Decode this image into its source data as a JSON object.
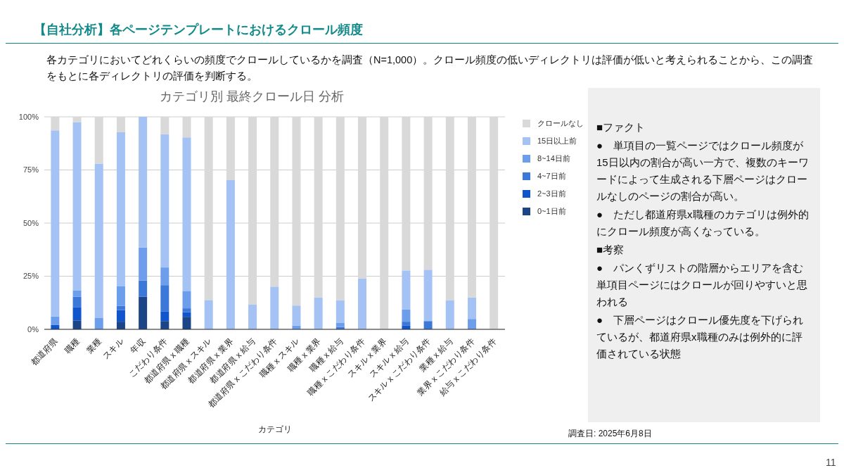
{
  "chart_data": {
    "type": "bar",
    "stacked": true,
    "title": "【自社分析】各ページテンプレートにおけるクロール頻度",
    "subtitle": "各カテゴリにおいてどれくらいの頻度でクロールしているかを調査（N=1,000）。クロール頻度の低いディレクトリは評価が低いと考えられることから、この調査をもとに各ディレクトリの評価を判断する。",
    "xlabel": "カテゴリ",
    "categories": [
      "都道府県",
      "職種",
      "業種",
      "スキル",
      "年収",
      "こだわり条件",
      "都道府県 x 職種",
      "都道府県 x スキル",
      "都道府県 x 業界",
      "都道府県 x 給与",
      "都道府県 x こだわり条件",
      "職種 x スキル",
      "職種 x 業界",
      "職種 x 給与",
      "職種 x こだわり条件",
      "スキル x 業界",
      "スキル x 給与",
      "スキル x こだわり条件",
      "業種 x 給与",
      "業界 x こだわり条件",
      "給与 x こだわり条件"
    ],
    "series": [
      {
        "name": "0~1日前",
        "color": "#1c4587",
        "values": [
          0,
          4.2,
          0,
          3.6,
          15.3,
          3.9,
          5.9,
          0,
          0,
          0,
          0,
          0,
          0,
          0,
          0,
          0,
          0,
          0,
          0,
          0,
          0
        ]
      },
      {
        "name": "2~3日前",
        "color": "#1155cc",
        "values": [
          2,
          6.1,
          0,
          5.5,
          0,
          4.6,
          2.2,
          0,
          0,
          0,
          0,
          0,
          0,
          0,
          0,
          0,
          1.7,
          0,
          0,
          0,
          0
        ]
      },
      {
        "name": "4~7日前",
        "color": "#3c78d8",
        "values": [
          0,
          5,
          0,
          1.9,
          7.7,
          12.3,
          1.8,
          0,
          0,
          0,
          0,
          0,
          0,
          1.1,
          0,
          0,
          1.9,
          3.9,
          0,
          0,
          0
        ]
      },
      {
        "name": "8~14日前",
        "color": "#6d9eeb",
        "values": [
          4.1,
          3.1,
          5.5,
          9.2,
          15.5,
          8.3,
          8,
          0,
          0,
          0,
          0,
          1.7,
          0,
          1.9,
          0,
          0,
          5.7,
          0,
          0,
          4.9,
          0
        ]
      },
      {
        "name": "15日以上前",
        "color": "#a4c2f4",
        "values": [
          87.5,
          79.1,
          72.5,
          72.5,
          61.5,
          62.7,
          72.4,
          13.8,
          70.2,
          11.6,
          20.1,
          9.5,
          15,
          10.7,
          23.9,
          0,
          18.4,
          24.2,
          13.7,
          10.1,
          0
        ]
      },
      {
        "name": "クロールなし",
        "color": "#d9d9d9",
        "values": [
          6.4,
          2.5,
          22,
          7.3,
          0,
          8.2,
          9.7,
          86.2,
          29.8,
          88.4,
          79.9,
          88.8,
          85,
          86.3,
          76.1,
          100,
          72.3,
          71.9,
          86.3,
          85,
          100
        ]
      }
    ],
    "ylim": [
      0,
      100
    ],
    "yticks": [
      {
        "value": 0,
        "label": "0%"
      },
      {
        "value": 25,
        "label": "25%"
      },
      {
        "value": 50,
        "label": "50%"
      },
      {
        "value": 75,
        "label": "75%"
      },
      {
        "value": 100,
        "label": "100%"
      }
    ],
    "grid": "y",
    "legend": "right",
    "annotations": [
      "カテゴリ別 最終クロール日 分析",
      "■ファクト",
      "●　単項目の一覧ページではクロール頻度が15日以内の割合が高い一方で、複数のキーワードによって生成される下層ページはクロールなしのページの割合が高い。",
      "●　ただし都道府県x職種のカテゴリは例外的にクロール頻度が高くなっている。",
      "■考察",
      "●　パンくずリストの階層からエリアを含む単項目ページにはクロールが回りやすいと思われる",
      "●　下層ページはクロール優先度を下げられているが、都道府県x職種のみは例外的に評価されている状態",
      "調査日: 2025年6月8日",
      "11"
    ]
  }
}
